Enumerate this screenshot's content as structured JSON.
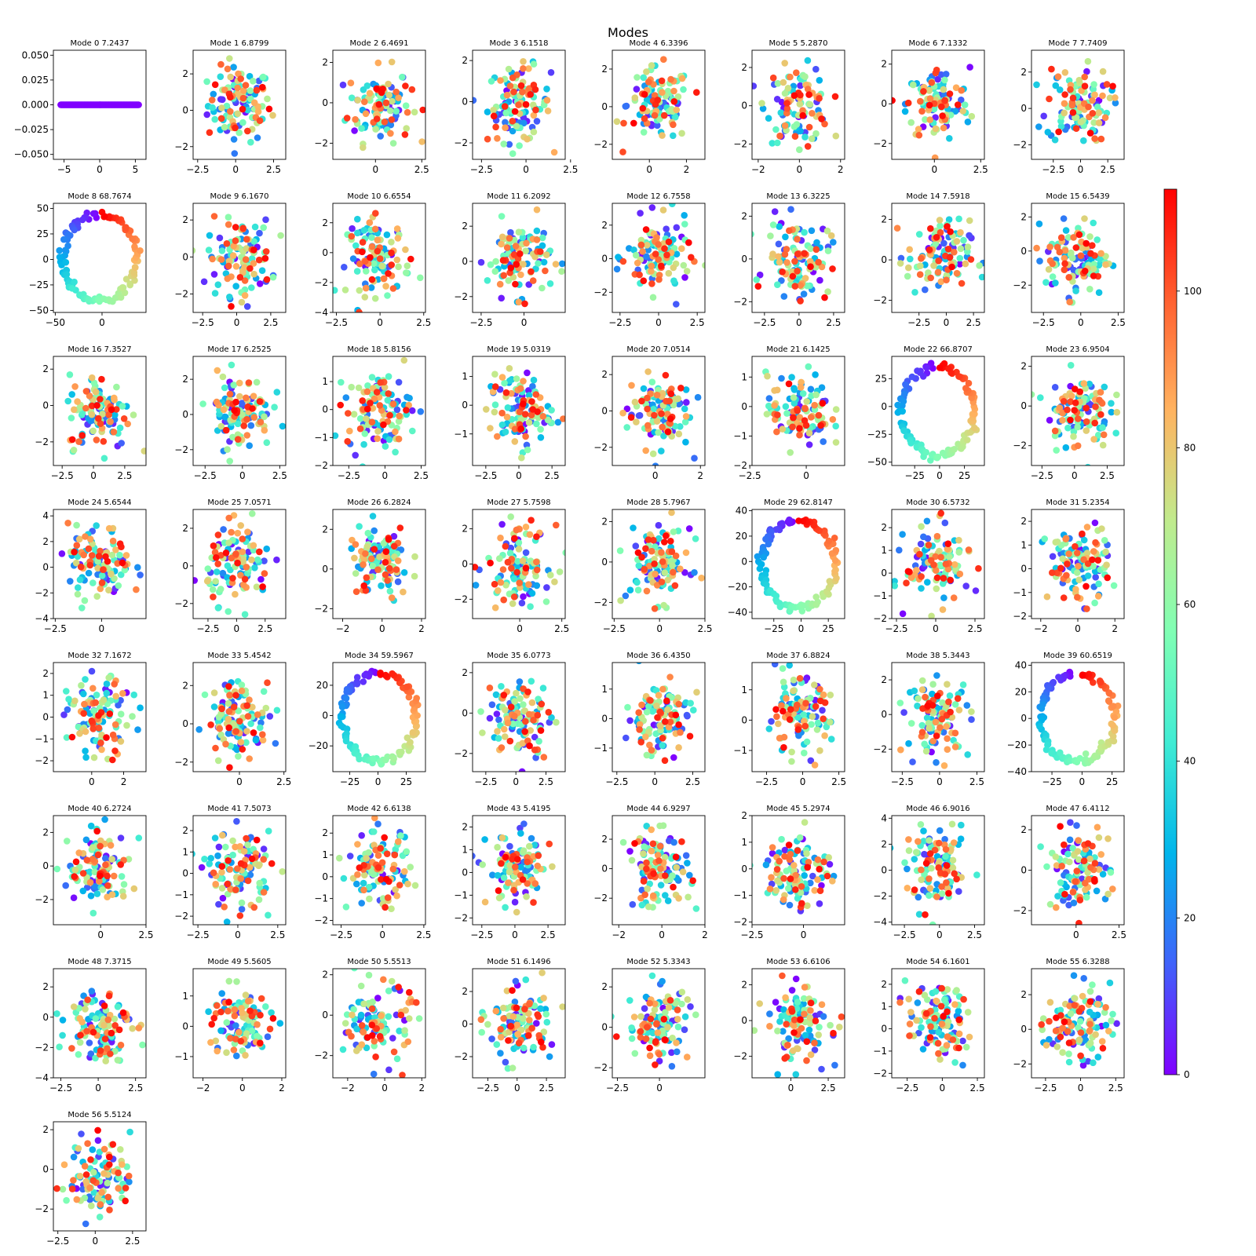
{
  "title": "Modes",
  "colorbar": {
    "colormap": "rainbow",
    "range": [
      0,
      113
    ],
    "ticks": [
      0,
      20,
      40,
      60,
      80,
      100
    ]
  },
  "chart_data": [
    {
      "type": "scatter",
      "title": "Mode 0 7.2437",
      "ring": false,
      "line": true,
      "xlim": [
        -6.5,
        6.5
      ],
      "ylim": [
        -0.055,
        0.055
      ],
      "xticks": [
        -5,
        0,
        5
      ],
      "yticks": [
        -0.05,
        -0.025,
        0.0,
        0.025,
        0.05
      ],
      "ytick_labels": [
        "−0.050",
        "−0.025",
        "0.000",
        "0.025",
        "0.050"
      ],
      "xtick_labels": [
        "−5",
        "0",
        "5"
      ]
    },
    {
      "type": "scatter",
      "title": "Mode 1 6.8799",
      "ring": false,
      "xlim": [
        -2.8,
        3.3
      ],
      "ylim": [
        -2.7,
        3.3
      ],
      "xticks": [
        -2.5,
        0,
        2.5
      ],
      "yticks": [
        -2,
        0,
        2
      ]
    },
    {
      "type": "scatter",
      "title": "Mode 2 6.4691",
      "ring": false,
      "xlim": [
        -2.3,
        2.7
      ],
      "ylim": [
        -2.8,
        2.6
      ],
      "xticks": [
        0,
        2.5
      ],
      "yticks": [
        -2,
        0,
        2
      ]
    },
    {
      "type": "scatter",
      "title": "Mode 3 6.1518",
      "ring": false,
      "xlim": [
        -3.0,
        2.2
      ],
      "ylim": [
        -2.8,
        2.5
      ],
      "xticks": [
        -2.5,
        0,
        2.5
      ],
      "yticks": [
        -2,
        0,
        2
      ]
    },
    {
      "type": "scatter",
      "title": "Mode 4 6.3396",
      "ring": false,
      "xlim": [
        -2.0,
        3.0
      ],
      "ylim": [
        -2.8,
        3.0
      ],
      "xticks": [
        0,
        2
      ],
      "yticks": [
        -2,
        0,
        2
      ]
    },
    {
      "type": "scatter",
      "title": "Mode 5 5.2870",
      "ring": false,
      "xlim": [
        -2.3,
        2.2
      ],
      "ylim": [
        -2.8,
        2.9
      ],
      "xticks": [
        -2,
        0,
        2
      ],
      "yticks": [
        -2,
        0,
        2
      ]
    },
    {
      "type": "scatter",
      "title": "Mode 6 7.1332",
      "ring": false,
      "xlim": [
        -2.3,
        2.7
      ],
      "ylim": [
        -2.8,
        2.7
      ],
      "xticks": [
        0,
        2.5
      ],
      "yticks": [
        -2,
        0,
        2
      ]
    },
    {
      "type": "scatter",
      "title": "Mode 7 7.7409",
      "ring": false,
      "xlim": [
        -4.5,
        4.0
      ],
      "ylim": [
        -2.8,
        3.2
      ],
      "xticks": [
        -2.5,
        0,
        2.5
      ],
      "yticks": [
        -2,
        0,
        2
      ]
    },
    {
      "type": "scatter",
      "title": "Mode 8 68.7674",
      "ring": true,
      "xlim": [
        -52,
        47
      ],
      "ylim": [
        -52,
        55
      ],
      "xticks": [
        -50,
        0
      ],
      "yticks": [
        -50,
        -25,
        0,
        25,
        50
      ]
    },
    {
      "type": "scatter",
      "title": "Mode 9 6.1670",
      "ring": false,
      "xlim": [
        -3.2,
        3.6
      ],
      "ylim": [
        -3.0,
        2.9
      ],
      "xticks": [
        -2.5,
        0,
        2.5
      ],
      "yticks": [
        -2,
        0,
        2
      ]
    },
    {
      "type": "scatter",
      "title": "Mode 10 6.6554",
      "ring": false,
      "xlim": [
        -2.7,
        2.6
      ],
      "ylim": [
        -4.0,
        3.3
      ],
      "xticks": [
        -2.5,
        0,
        2.5
      ],
      "yticks": [
        -4,
        -2,
        0,
        2
      ]
    },
    {
      "type": "scatter",
      "title": "Mode 11 6.2092",
      "ring": false,
      "xlim": [
        -3.0,
        2.4
      ],
      "ylim": [
        -2.9,
        3.3
      ],
      "xticks": [
        -2.5,
        0
      ],
      "yticks": [
        -2,
        0,
        2
      ]
    },
    {
      "type": "scatter",
      "title": "Mode 12 6.7558",
      "ring": false,
      "xlim": [
        -3.0,
        3.0
      ],
      "ylim": [
        -3.2,
        3.3
      ],
      "xticks": [
        -2.5,
        0,
        2.5
      ],
      "yticks": [
        -2,
        0,
        2
      ]
    },
    {
      "type": "scatter",
      "title": "Mode 13 6.3225",
      "ring": false,
      "xlim": [
        -3.4,
        3.3
      ],
      "ylim": [
        -2.5,
        2.6
      ],
      "xticks": [
        -2.5,
        0,
        2.5
      ],
      "yticks": [
        -2,
        0,
        2
      ]
    },
    {
      "type": "scatter",
      "title": "Mode 14 7.5918",
      "ring": false,
      "xlim": [
        -5.0,
        3.5
      ],
      "ylim": [
        -2.6,
        2.8
      ],
      "xticks": [
        -2.5,
        0,
        2.5
      ],
      "yticks": [
        -2,
        0,
        2
      ]
    },
    {
      "type": "scatter",
      "title": "Mode 15 6.5439",
      "ring": false,
      "xlim": [
        -3.3,
        2.9
      ],
      "ylim": [
        -3.6,
        2.8
      ],
      "xticks": [
        -2.5,
        0,
        2.5
      ],
      "yticks": [
        -2,
        0,
        2
      ]
    },
    {
      "type": "scatter",
      "title": "Mode 16 7.3527",
      "ring": false,
      "xlim": [
        -3.2,
        4.2
      ],
      "ylim": [
        -3.3,
        2.7
      ],
      "xticks": [
        -2.5,
        0,
        2.5
      ],
      "yticks": [
        -2,
        0,
        2
      ]
    },
    {
      "type": "scatter",
      "title": "Mode 17 6.2525",
      "ring": false,
      "xlim": [
        -3.3,
        2.9
      ],
      "ylim": [
        -2.9,
        3.3
      ],
      "xticks": [
        -2.5,
        0,
        2.5
      ],
      "yticks": [
        -2,
        0,
        2
      ]
    },
    {
      "type": "scatter",
      "title": "Mode 18 5.8156",
      "ring": false,
      "xlim": [
        -3.6,
        2.8
      ],
      "ylim": [
        -2.0,
        1.9
      ],
      "xticks": [
        -2.5,
        0,
        2.5
      ],
      "yticks": [
        -2,
        -1,
        0,
        1
      ]
    },
    {
      "type": "scatter",
      "title": "Mode 19 5.0319",
      "ring": false,
      "xlim": [
        -3.5,
        3.5
      ],
      "ylim": [
        -2.1,
        1.7
      ],
      "xticks": [
        -2.5,
        0,
        2.5
      ],
      "yticks": [
        -1,
        0,
        1
      ]
    },
    {
      "type": "scatter",
      "title": "Mode 20 7.0514",
      "ring": false,
      "xlim": [
        -1.9,
        2.2
      ],
      "ylim": [
        -3.0,
        3.0
      ],
      "xticks": [
        0,
        2
      ],
      "yticks": [
        -2,
        0,
        2
      ]
    },
    {
      "type": "scatter",
      "title": "Mode 21 6.1425",
      "ring": false,
      "xlim": [
        -2.4,
        1.7
      ],
      "ylim": [
        -2.0,
        1.7
      ],
      "xticks": [
        -2.5,
        0
      ],
      "yticks": [
        -2,
        -1,
        0,
        1
      ]
    },
    {
      "type": "scatter",
      "title": "Mode 22 66.8707",
      "ring": true,
      "xlim": [
        -48,
        45
      ],
      "ylim": [
        -53,
        45
      ],
      "xticks": [
        -25,
        0,
        25
      ],
      "yticks": [
        -50,
        -25,
        0,
        25
      ]
    },
    {
      "type": "scatter",
      "title": "Mode 23 6.9504",
      "ring": false,
      "xlim": [
        -3.3,
        3.8
      ],
      "ylim": [
        -3.0,
        2.5
      ],
      "xticks": [
        -2.5,
        0,
        2.5
      ],
      "yticks": [
        -2,
        0,
        2
      ]
    },
    {
      "type": "scatter",
      "title": "Mode 24 5.6544",
      "ring": false,
      "xlim": [
        -2.6,
        2.4
      ],
      "ylim": [
        -4.0,
        4.5
      ],
      "xticks": [
        -2.5,
        0
      ],
      "yticks": [
        -4,
        -2,
        0,
        2,
        4
      ]
    },
    {
      "type": "scatter",
      "title": "Mode 25 7.0571",
      "ring": false,
      "xlim": [
        -3.8,
        4.3
      ],
      "ylim": [
        -2.8,
        3.0
      ],
      "xticks": [
        -2.5,
        0,
        2.5
      ],
      "yticks": [
        -2,
        0,
        2
      ]
    },
    {
      "type": "scatter",
      "title": "Mode 26 6.2824",
      "ring": false,
      "xlim": [
        -2.5,
        2.2
      ],
      "ylim": [
        -2.5,
        3.0
      ],
      "xticks": [
        -2,
        0,
        2
      ],
      "yticks": [
        -2,
        0,
        2
      ]
    },
    {
      "type": "scatter",
      "title": "Mode 27 5.7598",
      "ring": false,
      "xlim": [
        -2.8,
        2.7
      ],
      "ylim": [
        -3.1,
        3.1
      ],
      "xticks": [
        0,
        2.5
      ],
      "yticks": [
        -2,
        0,
        2
      ]
    },
    {
      "type": "scatter",
      "title": "Mode 28 5.7967",
      "ring": false,
      "xlim": [
        -2.6,
        2.5
      ],
      "ylim": [
        -2.8,
        2.6
      ],
      "xticks": [
        -2.5,
        0,
        2.5
      ],
      "yticks": [
        -2,
        0,
        2
      ]
    },
    {
      "type": "scatter",
      "title": "Mode 29 62.8147",
      "ring": true,
      "xlim": [
        -45,
        40
      ],
      "ylim": [
        -45,
        41
      ],
      "xticks": [
        -25,
        0,
        25
      ],
      "yticks": [
        -40,
        -20,
        0,
        20,
        40
      ]
    },
    {
      "type": "scatter",
      "title": "Mode 30 6.5732",
      "ring": false,
      "xlim": [
        -2.8,
        3.1
      ],
      "ylim": [
        -2.0,
        2.8
      ],
      "xticks": [
        -2.5,
        0,
        2.5
      ],
      "yticks": [
        -2,
        -1,
        0,
        1,
        2
      ]
    },
    {
      "type": "scatter",
      "title": "Mode 31 5.2354",
      "ring": false,
      "xlim": [
        -2.5,
        2.5
      ],
      "ylim": [
        -2.1,
        2.5
      ],
      "xticks": [
        -2,
        0,
        2
      ],
      "yticks": [
        -2,
        -1,
        0,
        1,
        2
      ]
    },
    {
      "type": "scatter",
      "title": "Mode 32 7.1672",
      "ring": false,
      "xlim": [
        -2.4,
        3.4
      ],
      "ylim": [
        -2.5,
        2.5
      ],
      "xticks": [
        0,
        2
      ],
      "yticks": [
        -2,
        -1,
        0,
        1,
        2
      ]
    },
    {
      "type": "scatter",
      "title": "Mode 33 5.4542",
      "ring": false,
      "xlim": [
        -2.6,
        2.6
      ],
      "ylim": [
        -2.5,
        3.2
      ],
      "xticks": [
        0,
        2.5
      ],
      "yticks": [
        -2,
        0,
        2
      ]
    },
    {
      "type": "scatter",
      "title": "Mode 34 59.5967",
      "ring": true,
      "xlim": [
        -40,
        42
      ],
      "ylim": [
        -37,
        35
      ],
      "xticks": [
        -25,
        0,
        25
      ],
      "yticks": [
        -20,
        0,
        20
      ]
    },
    {
      "type": "scatter",
      "title": "Mode 35 6.0773",
      "ring": false,
      "xlim": [
        -3.6,
        4.1
      ],
      "ylim": [
        -2.9,
        2.5
      ],
      "xticks": [
        -2.5,
        0,
        2.5
      ],
      "yticks": [
        -2,
        0,
        2
      ]
    },
    {
      "type": "scatter",
      "title": "Mode 36 6.4350",
      "ring": false,
      "xlim": [
        -2.8,
        3.3
      ],
      "ylim": [
        -1.8,
        1.9
      ],
      "xticks": [
        -2.5,
        0,
        2.5
      ],
      "yticks": [
        -1,
        0,
        1
      ]
    },
    {
      "type": "scatter",
      "title": "Mode 37 6.8824",
      "ring": false,
      "xlim": [
        -3.5,
        2.9
      ],
      "ylim": [
        -1.7,
        1.9
      ],
      "xticks": [
        -2.5,
        0,
        2.5
      ],
      "yticks": [
        -1,
        0,
        1
      ]
    },
    {
      "type": "scatter",
      "title": "Mode 38 5.3443",
      "ring": false,
      "xlim": [
        -3.2,
        3.0
      ],
      "ylim": [
        -3.3,
        3.0
      ],
      "xticks": [
        -2.5,
        0,
        2.5
      ],
      "yticks": [
        -2,
        0,
        2
      ]
    },
    {
      "type": "scatter",
      "title": "Mode 39 60.6519",
      "ring": true,
      "xlim": [
        -42,
        35
      ],
      "ylim": [
        -40,
        42
      ],
      "xticks": [
        -25,
        0,
        25
      ],
      "yticks": [
        -40,
        -20,
        0,
        20,
        40
      ]
    },
    {
      "type": "scatter",
      "title": "Mode 40 6.2724",
      "ring": false,
      "xlim": [
        -2.6,
        2.5
      ],
      "ylim": [
        -3.5,
        3.0
      ],
      "xticks": [
        0,
        2.5
      ],
      "yticks": [
        -2,
        0,
        2
      ]
    },
    {
      "type": "scatter",
      "title": "Mode 41 7.5073",
      "ring": false,
      "xlim": [
        -2.8,
        3.0
      ],
      "ylim": [
        -2.4,
        2.7
      ],
      "xticks": [
        -2.5,
        0,
        2.5
      ],
      "yticks": [
        -2,
        -1,
        0,
        1,
        2
      ]
    },
    {
      "type": "scatter",
      "title": "Mode 42 6.6138",
      "ring": false,
      "xlim": [
        -3.0,
        2.6
      ],
      "ylim": [
        -2.2,
        2.8
      ],
      "xticks": [
        -2.5,
        0,
        2.5
      ],
      "yticks": [
        -2,
        -1,
        0,
        1,
        2
      ]
    },
    {
      "type": "scatter",
      "title": "Mode 43 5.4195",
      "ring": false,
      "xlim": [
        -3.2,
        3.8
      ],
      "ylim": [
        -2.3,
        2.5
      ],
      "xticks": [
        -2.5,
        0,
        2.5
      ],
      "yticks": [
        -2,
        -1,
        0,
        1,
        2
      ]
    },
    {
      "type": "scatter",
      "title": "Mode 44 6.9297",
      "ring": false,
      "xlim": [
        -2.3,
        2.0
      ],
      "ylim": [
        -3.8,
        3.6
      ],
      "xticks": [
        -2,
        0,
        2
      ],
      "yticks": [
        -2,
        0,
        2
      ]
    },
    {
      "type": "scatter",
      "title": "Mode 45 5.2974",
      "ring": false,
      "xlim": [
        -2.5,
        2.0
      ],
      "ylim": [
        -2.1,
        2.0
      ],
      "xticks": [
        -2.5,
        0
      ],
      "yticks": [
        -2,
        -1,
        0,
        1,
        2
      ]
    },
    {
      "type": "scatter",
      "title": "Mode 46 6.9016",
      "ring": false,
      "xlim": [
        -3.4,
        3.2
      ],
      "ylim": [
        -4.2,
        4.2
      ],
      "xticks": [
        -2.5,
        0,
        2.5
      ],
      "yticks": [
        -4,
        -2,
        0,
        2,
        4
      ]
    },
    {
      "type": "scatter",
      "title": "Mode 47 6.4112",
      "ring": false,
      "xlim": [
        -2.6,
        2.8
      ],
      "ylim": [
        -2.7,
        2.7
      ],
      "xticks": [
        0,
        2.5
      ],
      "yticks": [
        -2,
        0,
        2
      ]
    },
    {
      "type": "scatter",
      "title": "Mode 48 7.3715",
      "ring": false,
      "xlim": [
        -3.0,
        3.2
      ],
      "ylim": [
        -4.0,
        3.2
      ],
      "xticks": [
        -2.5,
        0,
        2.5
      ],
      "yticks": [
        -4,
        -2,
        0,
        2
      ]
    },
    {
      "type": "scatter",
      "title": "Mode 49 5.5605",
      "ring": false,
      "xlim": [
        -2.5,
        2.2
      ],
      "ylim": [
        -1.7,
        1.9
      ],
      "xticks": [
        -2,
        0,
        2
      ],
      "yticks": [
        -1,
        0,
        1
      ]
    },
    {
      "type": "scatter",
      "title": "Mode 50 5.5513",
      "ring": false,
      "xlim": [
        -2.8,
        2.2
      ],
      "ylim": [
        -3.1,
        2.3
      ],
      "xticks": [
        -2,
        0,
        2
      ],
      "yticks": [
        -2,
        0,
        2
      ]
    },
    {
      "type": "scatter",
      "title": "Mode 51 6.1496",
      "ring": false,
      "xlim": [
        -3.8,
        4.1
      ],
      "ylim": [
        -3.3,
        3.4
      ],
      "xticks": [
        -2.5,
        0,
        2.5
      ],
      "yticks": [
        -2,
        0,
        2
      ]
    },
    {
      "type": "scatter",
      "title": "Mode 52 5.3343",
      "ring": false,
      "xlim": [
        -2.8,
        2.7
      ],
      "ylim": [
        -2.5,
        2.9
      ],
      "xticks": [
        -2.5,
        0
      ],
      "yticks": [
        -2,
        0,
        2
      ]
    },
    {
      "type": "scatter",
      "title": "Mode 53 6.6106",
      "ring": false,
      "xlim": [
        -2.6,
        3.6
      ],
      "ylim": [
        -3.2,
        2.9
      ],
      "xticks": [
        0,
        2.5
      ],
      "yticks": [
        -2,
        0,
        2
      ]
    },
    {
      "type": "scatter",
      "title": "Mode 54 6.1601",
      "ring": false,
      "xlim": [
        -3.6,
        3.0
      ],
      "ylim": [
        -2.2,
        2.7
      ],
      "xticks": [
        -2.5,
        0,
        2.5
      ],
      "yticks": [
        -2,
        -1,
        0,
        1,
        2
      ]
    },
    {
      "type": "scatter",
      "title": "Mode 55 6.3288",
      "ring": false,
      "xlim": [
        -3.5,
        3.1
      ],
      "ylim": [
        -2.8,
        3.5
      ],
      "xticks": [
        -2.5,
        0,
        2.5
      ],
      "yticks": [
        -2,
        0,
        2
      ]
    },
    {
      "type": "scatter",
      "title": "Mode 56 5.5124",
      "ring": false,
      "xlim": [
        -2.8,
        3.4
      ],
      "ylim": [
        -3.1,
        2.4
      ],
      "xticks": [
        -2.5,
        0,
        2.5
      ],
      "yticks": [
        -2,
        0,
        2
      ]
    }
  ]
}
